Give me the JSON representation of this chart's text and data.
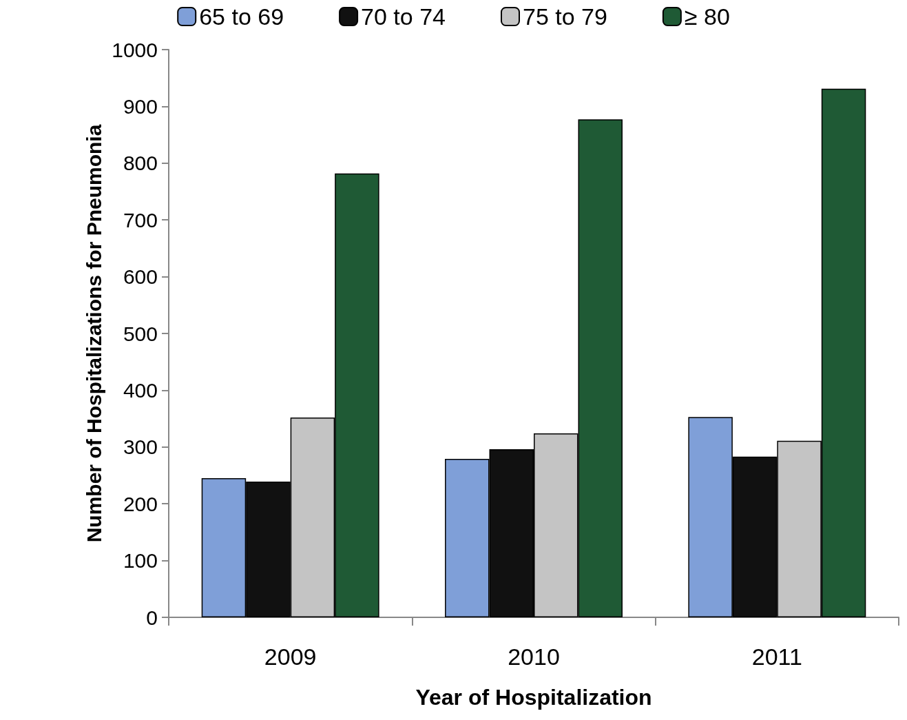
{
  "chart_data": {
    "type": "bar",
    "xlabel": "Year of Hospitalization",
    "ylabel": "Number of Hospitalizations for Pneumonia",
    "categories": [
      "2009",
      "2010",
      "2011"
    ],
    "series": [
      {
        "name": "65 to 69",
        "color": "#7f9fd8",
        "values": [
          245,
          279,
          353
        ]
      },
      {
        "name": "70 to 74",
        "color": "#111111",
        "values": [
          239,
          296,
          283
        ]
      },
      {
        "name": "75 to 79",
        "color": "#c4c4c4",
        "values": [
          352,
          324,
          311
        ]
      },
      {
        "name": "≥ 80",
        "color": "#1f5a35",
        "values": [
          782,
          877,
          931
        ]
      }
    ],
    "ylim": [
      0,
      1000
    ],
    "yticks": [
      0,
      100,
      200,
      300,
      400,
      500,
      600,
      700,
      800,
      900,
      1000
    ],
    "grid": false,
    "legend": "top"
  }
}
